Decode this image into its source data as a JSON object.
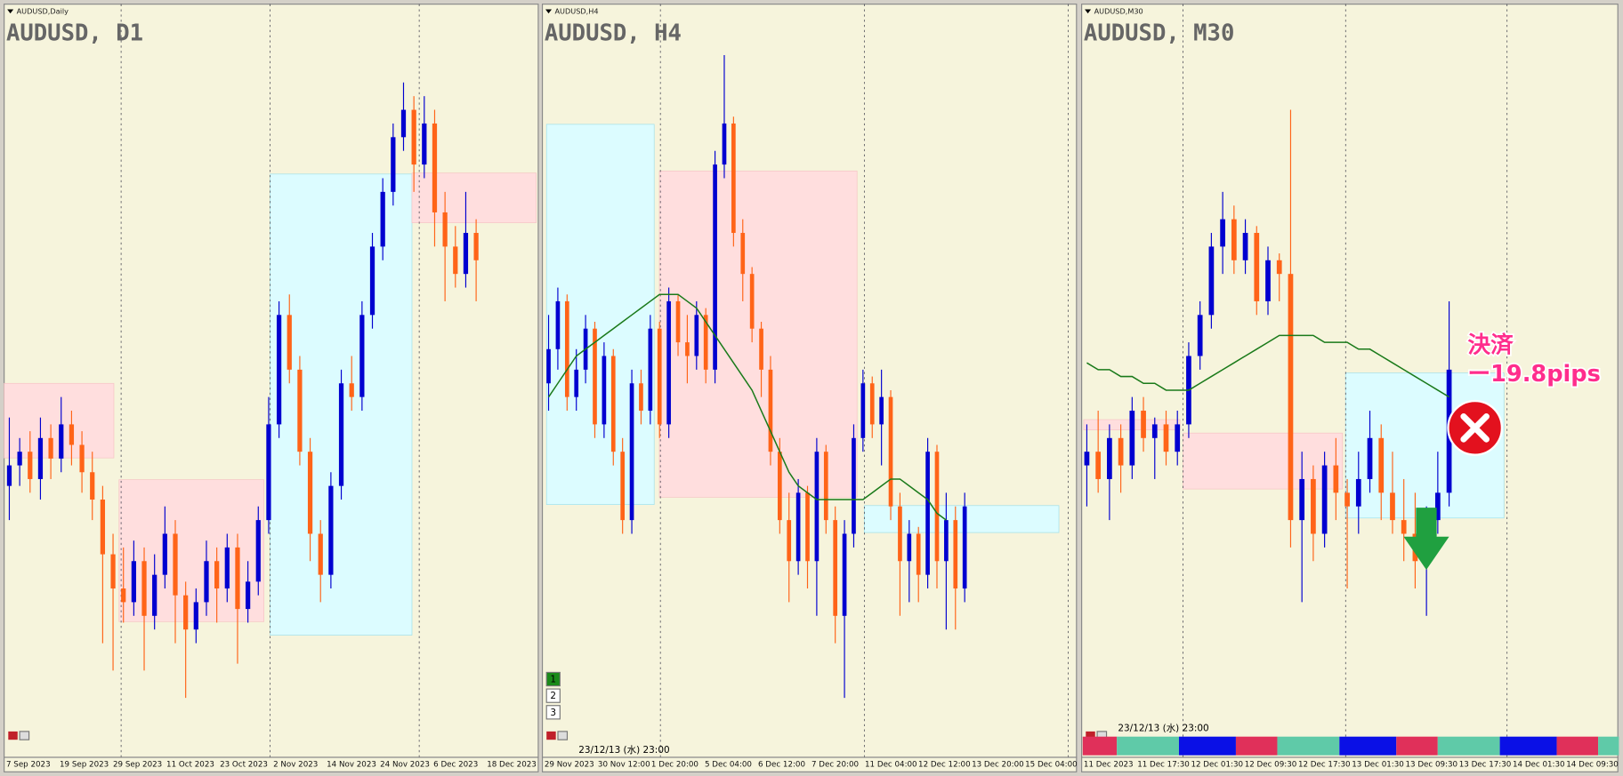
{
  "chart_data": [
    {
      "type": "candlestick",
      "label": "AUDUSD,Daily",
      "title": "AUDUSD, D1",
      "categories": [
        "7 Sep 2023",
        "19 Sep 2023",
        "29 Sep 2023",
        "11 Oct 2023",
        "23 Oct 2023",
        "2 Nov 2023",
        "14 Nov 2023",
        "24 Nov 2023",
        "6 Dec 2023",
        "18 Dec 2023"
      ],
      "ylim": [
        0,
        100
      ],
      "up_color": "#0000d0",
      "down_color": "#ff6418",
      "candles": [
        [
          35,
          45,
          30,
          38
        ],
        [
          38,
          42,
          35,
          40
        ],
        [
          40,
          43,
          34,
          36
        ],
        [
          36,
          45,
          33,
          42
        ],
        [
          42,
          44,
          36,
          39
        ],
        [
          39,
          48,
          37,
          44
        ],
        [
          44,
          46,
          38,
          41
        ],
        [
          41,
          43,
          34,
          37
        ],
        [
          37,
          40,
          30,
          33
        ],
        [
          33,
          35,
          12,
          25
        ],
        [
          25,
          28,
          8,
          20
        ],
        [
          20,
          26,
          15,
          18
        ],
        [
          18,
          27,
          16,
          24
        ],
        [
          24,
          26,
          8,
          16
        ],
        [
          16,
          25,
          14,
          22
        ],
        [
          22,
          32,
          20,
          28
        ],
        [
          28,
          30,
          12,
          19
        ],
        [
          19,
          21,
          4,
          14
        ],
        [
          14,
          20,
          12,
          18
        ],
        [
          18,
          27,
          16,
          24
        ],
        [
          24,
          26,
          15,
          20
        ],
        [
          20,
          28,
          18,
          26
        ],
        [
          26,
          28,
          9,
          17
        ],
        [
          17,
          24,
          15,
          21
        ],
        [
          21,
          32,
          19,
          30
        ],
        [
          30,
          48,
          28,
          44
        ],
        [
          44,
          62,
          42,
          60
        ],
        [
          60,
          63,
          50,
          52
        ],
        [
          52,
          54,
          38,
          40
        ],
        [
          40,
          42,
          24,
          28
        ],
        [
          28,
          30,
          18,
          22
        ],
        [
          22,
          37,
          20,
          35
        ],
        [
          35,
          52,
          33,
          50
        ],
        [
          50,
          54,
          46,
          48
        ],
        [
          48,
          62,
          46,
          60
        ],
        [
          60,
          72,
          58,
          70
        ],
        [
          70,
          80,
          68,
          78
        ],
        [
          78,
          88,
          76,
          86
        ],
        [
          86,
          94,
          84,
          90
        ],
        [
          90,
          92,
          78,
          82
        ],
        [
          82,
          92,
          80,
          88
        ],
        [
          88,
          90,
          70,
          75
        ],
        [
          75,
          78,
          62,
          70
        ],
        [
          70,
          73,
          64,
          66
        ],
        [
          66,
          78,
          64,
          72
        ],
        [
          72,
          74,
          62,
          68
        ]
      ]
    },
    {
      "type": "candlestick",
      "label": "AUDUSD,H4",
      "title": "AUDUSD, H4",
      "categories": [
        "29 Nov 2023",
        "30 Nov 12:00",
        "1 Dec 20:00",
        "5 Dec 04:00",
        "6 Dec 12:00",
        "7 Dec 20:00",
        "11 Dec 04:00",
        "12 Dec 12:00",
        "13 Dec 20:00",
        "15 Dec 04:00"
      ],
      "ylim": [
        0,
        100
      ],
      "up_color": "#0000d0",
      "down_color": "#ff6418",
      "ma_color": "#1a7a1a",
      "timestamp": "23/12/13 (水) 23:00",
      "buttons": [
        "1",
        "2",
        "3"
      ],
      "candles": [
        [
          50,
          60,
          46,
          55
        ],
        [
          55,
          64,
          52,
          62
        ],
        [
          62,
          63,
          46,
          48
        ],
        [
          48,
          55,
          46,
          52
        ],
        [
          52,
          60,
          50,
          58
        ],
        [
          58,
          59,
          42,
          44
        ],
        [
          44,
          56,
          42,
          54
        ],
        [
          54,
          55,
          38,
          40
        ],
        [
          40,
          42,
          28,
          30
        ],
        [
          30,
          52,
          28,
          50
        ],
        [
          50,
          52,
          44,
          46
        ],
        [
          46,
          60,
          44,
          58
        ],
        [
          58,
          59,
          42,
          44
        ],
        [
          44,
          64,
          42,
          62
        ],
        [
          62,
          63,
          54,
          56
        ],
        [
          56,
          60,
          50,
          54
        ],
        [
          54,
          62,
          52,
          60
        ],
        [
          60,
          61,
          50,
          52
        ],
        [
          52,
          84,
          50,
          82
        ],
        [
          82,
          98,
          80,
          88
        ],
        [
          88,
          89,
          70,
          72
        ],
        [
          72,
          74,
          62,
          66
        ],
        [
          66,
          67,
          56,
          58
        ],
        [
          58,
          59,
          48,
          52
        ],
        [
          52,
          54,
          38,
          40
        ],
        [
          40,
          42,
          28,
          30
        ],
        [
          30,
          34,
          18,
          24
        ],
        [
          24,
          36,
          22,
          34
        ],
        [
          34,
          35,
          20,
          24
        ],
        [
          24,
          42,
          16,
          40
        ],
        [
          40,
          41,
          28,
          30
        ],
        [
          30,
          32,
          12,
          16
        ],
        [
          16,
          30,
          4,
          28
        ],
        [
          28,
          44,
          26,
          42
        ],
        [
          42,
          52,
          40,
          50
        ],
        [
          50,
          51,
          42,
          44
        ],
        [
          44,
          52,
          38,
          48
        ],
        [
          48,
          49,
          30,
          32
        ],
        [
          32,
          34,
          16,
          24
        ],
        [
          24,
          30,
          18,
          28
        ],
        [
          28,
          29,
          18,
          22
        ],
        [
          22,
          42,
          20,
          40
        ],
        [
          40,
          41,
          20,
          24
        ],
        [
          24,
          34,
          14,
          30
        ],
        [
          30,
          32,
          14,
          20
        ],
        [
          20,
          34,
          18,
          32
        ]
      ],
      "ma": [
        48,
        50,
        52,
        54,
        55,
        56,
        57,
        58,
        59,
        60,
        61,
        62,
        63,
        63,
        63,
        62,
        61,
        59,
        57,
        55,
        53,
        51,
        49,
        46,
        43,
        40,
        37,
        35,
        34,
        33,
        33,
        33,
        33,
        33,
        33,
        34,
        35,
        36,
        36,
        35,
        34,
        33,
        31,
        30,
        null,
        null
      ]
    },
    {
      "type": "candlestick",
      "label": "AUDUSD,M30",
      "title": "AUDUSD, M30",
      "categories": [
        "11 Dec 2023",
        "11 Dec 17:30",
        "12 Dec 01:30",
        "12 Dec 09:30",
        "12 Dec 17:30",
        "13 Dec 01:30",
        "13 Dec 09:30",
        "13 Dec 17:30",
        "14 Dec 01:30",
        "14 Dec 09:30"
      ],
      "ylim": [
        0,
        100
      ],
      "up_color": "#0000d0",
      "down_color": "#ff6418",
      "ma_color": "#1a7a1a",
      "timestamp": "23/12/13 (水) 23:00",
      "annotations": [
        "決済",
        "ー19.8pips"
      ],
      "candles": [
        [
          38,
          44,
          32,
          40
        ],
        [
          40,
          46,
          34,
          36
        ],
        [
          36,
          44,
          30,
          42
        ],
        [
          42,
          44,
          34,
          38
        ],
        [
          38,
          48,
          36,
          46
        ],
        [
          46,
          48,
          40,
          42
        ],
        [
          42,
          45,
          36,
          44
        ],
        [
          44,
          46,
          38,
          40
        ],
        [
          40,
          46,
          38,
          44
        ],
        [
          44,
          56,
          42,
          54
        ],
        [
          54,
          62,
          52,
          60
        ],
        [
          60,
          72,
          58,
          70
        ],
        [
          70,
          78,
          66,
          74
        ],
        [
          74,
          76,
          66,
          68
        ],
        [
          68,
          74,
          66,
          72
        ],
        [
          72,
          73,
          60,
          62
        ],
        [
          62,
          70,
          60,
          68
        ],
        [
          68,
          69,
          62,
          66
        ],
        [
          66,
          90,
          26,
          30
        ],
        [
          30,
          40,
          18,
          36
        ],
        [
          36,
          38,
          24,
          28
        ],
        [
          28,
          40,
          26,
          38
        ],
        [
          38,
          42,
          30,
          34
        ],
        [
          34,
          36,
          20,
          32
        ],
        [
          32,
          40,
          28,
          36
        ],
        [
          36,
          46,
          34,
          42
        ],
        [
          42,
          44,
          30,
          34
        ],
        [
          34,
          40,
          28,
          30
        ],
        [
          30,
          36,
          24,
          28
        ],
        [
          28,
          34,
          20,
          24
        ],
        [
          24,
          32,
          16,
          30
        ],
        [
          30,
          40,
          28,
          34
        ],
        [
          34,
          62,
          32,
          52
        ]
      ],
      "ma": [
        53,
        52,
        52,
        51,
        51,
        50,
        50,
        49,
        49,
        49,
        50,
        51,
        52,
        53,
        54,
        55,
        56,
        57,
        57,
        57,
        57,
        56,
        56,
        56,
        55,
        55,
        54,
        53,
        52,
        51,
        50,
        49,
        48
      ]
    }
  ]
}
